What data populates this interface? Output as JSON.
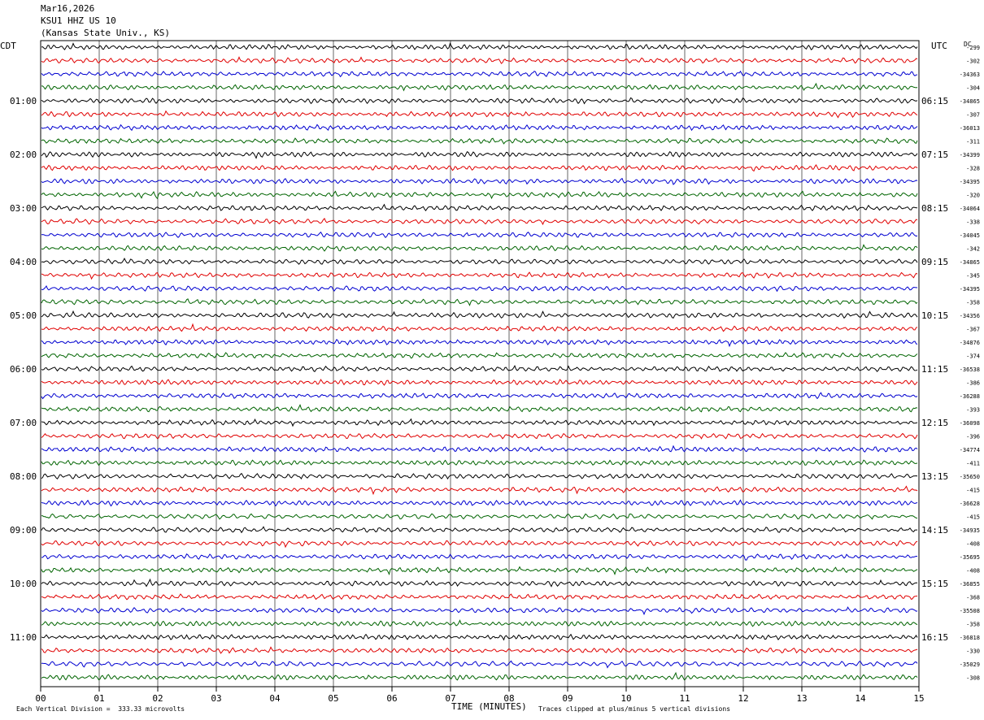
{
  "header": {
    "date": "Mar16,2026",
    "station": "KSU1 HHZ US 10",
    "location": "(Kansas State Univ., KS)"
  },
  "left_axis_title": "CDT",
  "right_axis_title": "UTC",
  "dc_label": "DC",
  "footer": {
    "scale_note": "Each Vertical Division =  333.33 microvolts",
    "clip_note": "Traces clipped at plus/minus 5 vertical divisions"
  },
  "colors": {
    "trace_cycle": [
      "#000000",
      "#e00000",
      "#0000d0",
      "#006400"
    ],
    "grid": "#000000",
    "background": "#ffffff"
  },
  "chart_data": {
    "type": "line",
    "subtype": "helicorder",
    "xlabel": "TIME (MINUTES)",
    "xlim": [
      0,
      15
    ],
    "x_ticks": [
      "00",
      "01",
      "02",
      "03",
      "04",
      "05",
      "06",
      "07",
      "08",
      "09",
      "10",
      "11",
      "12",
      "13",
      "14",
      "15"
    ],
    "rows_per_hour": 4,
    "row_count": 48,
    "left_hour_labels": [
      "01:00",
      "02:00",
      "03:00",
      "04:00",
      "05:00",
      "06:00",
      "07:00",
      "08:00",
      "09:00",
      "10:00",
      "11:00"
    ],
    "right_hour_labels": [
      "06:15",
      "07:15",
      "08:15",
      "09:15",
      "10:15",
      "11:15",
      "12:15",
      "13:15",
      "14:15",
      "15:15",
      "16:15"
    ],
    "hour_label_rows": [
      4,
      8,
      12,
      16,
      20,
      24,
      28,
      32,
      36,
      40,
      44
    ],
    "dc_offsets": [
      "-299",
      "-302",
      "-34363",
      "-304",
      "-34865",
      "-307",
      "-36013",
      "-311",
      "-34399",
      "-328",
      "-34395",
      "-320",
      "-34064",
      "-338",
      "-34045",
      "-342",
      "-34865",
      "-345",
      "-34395",
      "-358",
      "-34356",
      "-367",
      "-34876",
      "-374",
      "-36538",
      "-386",
      "-36288",
      "-393",
      "-36098",
      "-396",
      "-34774",
      "-411",
      "-35650",
      "-415",
      "-36628",
      "-415",
      "-34935",
      "-408",
      "-35695",
      "-408",
      "-36855",
      "-368",
      "-35508",
      "-358",
      "-36818",
      "-330",
      "-35029",
      "-308"
    ]
  }
}
